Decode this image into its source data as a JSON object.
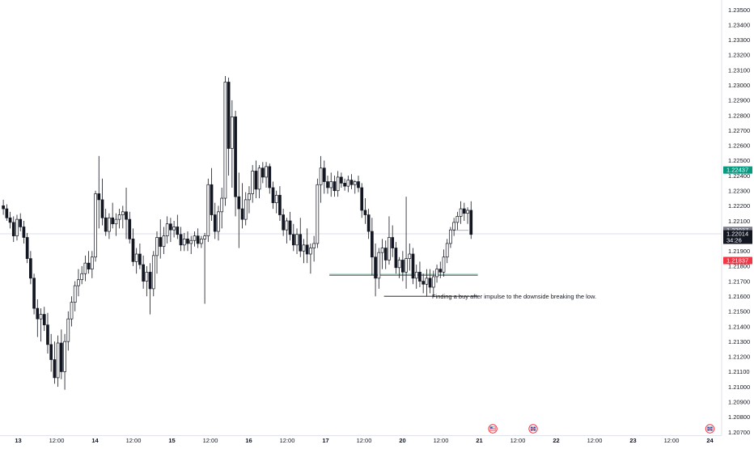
{
  "chart_data": {
    "type": "candlestick",
    "symbol": "",
    "price_axis": {
      "labels": [
        "1.23500",
        "1.23400",
        "1.23300",
        "1.23200",
        "1.23100",
        "1.23000",
        "1.22900",
        "1.22800",
        "1.22700",
        "1.22600",
        "1.22500",
        "1.22400",
        "1.22300",
        "1.22200",
        "1.22100",
        "1.22000",
        "1.21900",
        "1.21800",
        "1.21700",
        "1.21600",
        "1.21500",
        "1.21400",
        "1.21300",
        "1.21200",
        "1.21100",
        "1.21000",
        "1.20900",
        "1.20800",
        "1.20700"
      ],
      "ylim": [
        1.207,
        1.2355
      ]
    },
    "time_axis": {
      "labels": [
        "13",
        "12:00",
        "14",
        "12:00",
        "15",
        "12:00",
        "16",
        "12:00",
        "17",
        "12:00",
        "20",
        "12:00",
        "21",
        "12:00",
        "22",
        "12:00",
        "23",
        "12:00",
        "24"
      ],
      "bold": [
        "13",
        "14",
        "15",
        "16",
        "17",
        "20",
        "21",
        "22",
        "23",
        "24"
      ]
    },
    "price_tags": [
      {
        "label": "1.22437",
        "value": 1.22437,
        "color": "#089981",
        "text_color": "#ffffff"
      },
      {
        "label": "1.22037",
        "value": 1.22037,
        "color": "#787b86",
        "text_color": "#ffffff"
      },
      {
        "label": "1.22014",
        "value": 1.22014,
        "color": "#131722",
        "text_color": "#ffffff",
        "countdown": "34:26"
      },
      {
        "label": "1.21837",
        "value": 1.21837,
        "color": "#f23645",
        "text_color": "#ffffff"
      }
    ],
    "current_price": 1.22014,
    "position": {
      "type": "long",
      "entry": 1.22037,
      "target": 1.22437,
      "stop": 1.21837,
      "profit_color": "#e6f4f1",
      "loss_color": "#fde4e7"
    },
    "levels": [
      {
        "price": 1.21745,
        "color": "#5aa68c",
        "from_bar": 96,
        "to_bar": 139
      },
      {
        "price": 1.216,
        "color": "#555555",
        "from_bar": 112,
        "to_bar": 139
      }
    ],
    "annotation": "Finding a buy after impulse to the downside breaking the low.",
    "event_markers": [
      {
        "type": "US-flag-icon",
        "at_index": 12.35
      },
      {
        "type": "UK-flag-icon",
        "at_index": 13.4
      },
      {
        "type": "UK-flag-icon",
        "at_index": 18.0
      }
    ],
    "candles": [
      [
        1.222,
        1.2224,
        1.2214,
        1.2218
      ],
      [
        1.2218,
        1.2221,
        1.221,
        1.2212
      ],
      [
        1.2212,
        1.2216,
        1.2205,
        1.2209
      ],
      [
        1.2209,
        1.2213,
        1.2196,
        1.22
      ],
      [
        1.22,
        1.2214,
        1.2197,
        1.2211
      ],
      [
        1.2211,
        1.2215,
        1.2203,
        1.2206
      ],
      [
        1.2206,
        1.221,
        1.2195,
        1.2199
      ],
      [
        1.2199,
        1.2202,
        1.2182,
        1.2185
      ],
      [
        1.2185,
        1.219,
        1.2168,
        1.2172
      ],
      [
        1.2172,
        1.2175,
        1.2148,
        1.2152
      ],
      [
        1.2152,
        1.2158,
        1.2133,
        1.2145
      ],
      [
        1.2145,
        1.2152,
        1.213,
        1.2148
      ],
      [
        1.2148,
        1.2153,
        1.2137,
        1.2141
      ],
      [
        1.2141,
        1.2149,
        1.2122,
        1.2128
      ],
      [
        1.2128,
        1.2135,
        1.211,
        1.2118
      ],
      [
        1.2118,
        1.213,
        1.2102,
        1.2106
      ],
      [
        1.2106,
        1.2134,
        1.21,
        1.2129
      ],
      [
        1.2129,
        1.2138,
        1.2105,
        1.211
      ],
      [
        1.211,
        1.2135,
        1.2098,
        1.213
      ],
      [
        1.213,
        1.215,
        1.2124,
        1.2145
      ],
      [
        1.2145,
        1.216,
        1.214,
        1.2156
      ],
      [
        1.2156,
        1.217,
        1.215,
        1.2167
      ],
      [
        1.2167,
        1.2178,
        1.216,
        1.2171
      ],
      [
        1.2171,
        1.218,
        1.2168,
        1.2175
      ],
      [
        1.2175,
        1.2187,
        1.217,
        1.2182
      ],
      [
        1.2182,
        1.219,
        1.2175,
        1.2178
      ],
      [
        1.2178,
        1.219,
        1.2172,
        1.2186
      ],
      [
        1.2186,
        1.223,
        1.2183,
        1.2228
      ],
      [
        1.2228,
        1.2253,
        1.2205,
        1.2224
      ],
      [
        1.2224,
        1.2238,
        1.2207,
        1.2212
      ],
      [
        1.2212,
        1.2218,
        1.22,
        1.2203
      ],
      [
        1.2203,
        1.2215,
        1.2198,
        1.2212
      ],
      [
        1.2212,
        1.2222,
        1.2205,
        1.2208
      ],
      [
        1.2208,
        1.2215,
        1.22,
        1.2211
      ],
      [
        1.2211,
        1.2218,
        1.2205,
        1.2214
      ],
      [
        1.2214,
        1.222,
        1.2205,
        1.2216
      ],
      [
        1.2216,
        1.2232,
        1.2198,
        1.2211
      ],
      [
        1.2211,
        1.2216,
        1.2195,
        1.2198
      ],
      [
        1.2198,
        1.2205,
        1.218,
        1.2183
      ],
      [
        1.2183,
        1.2192,
        1.2175,
        1.2188
      ],
      [
        1.2188,
        1.2195,
        1.2178,
        1.2181
      ],
      [
        1.2181,
        1.2187,
        1.2165,
        1.217
      ],
      [
        1.217,
        1.218,
        1.216,
        1.2176
      ],
      [
        1.2176,
        1.2182,
        1.2148,
        1.2165
      ],
      [
        1.2165,
        1.219,
        1.216,
        1.2187
      ],
      [
        1.2187,
        1.2203,
        1.2175,
        1.2199
      ],
      [
        1.2199,
        1.2211,
        1.2185,
        1.2193
      ],
      [
        1.2193,
        1.2206,
        1.2188,
        1.22
      ],
      [
        1.22,
        1.2213,
        1.2195,
        1.2208
      ],
      [
        1.2208,
        1.2212,
        1.2196,
        1.2204
      ],
      [
        1.2204,
        1.221,
        1.2199,
        1.2206
      ],
      [
        1.2206,
        1.2214,
        1.2198,
        1.2201
      ],
      [
        1.2201,
        1.2206,
        1.219,
        1.2194
      ],
      [
        1.2194,
        1.2202,
        1.219,
        1.2198
      ],
      [
        1.2198,
        1.2203,
        1.219,
        1.2195
      ],
      [
        1.2195,
        1.22,
        1.2188,
        1.2197
      ],
      [
        1.2197,
        1.2203,
        1.2193,
        1.22
      ],
      [
        1.22,
        1.2205,
        1.2192,
        1.2195
      ],
      [
        1.2195,
        1.22,
        1.2192,
        1.2198
      ],
      [
        1.2198,
        1.2202,
        1.2155,
        1.22
      ],
      [
        1.22,
        1.2238,
        1.2196,
        1.2234
      ],
      [
        1.2234,
        1.2245,
        1.221,
        1.2214
      ],
      [
        1.2214,
        1.2222,
        1.2198,
        1.2203
      ],
      [
        1.2203,
        1.222,
        1.2197,
        1.2216
      ],
      [
        1.2216,
        1.2232,
        1.2205,
        1.2225
      ],
      [
        1.2225,
        1.2306,
        1.222,
        1.2302
      ],
      [
        1.2302,
        1.2305,
        1.224,
        1.2258
      ],
      [
        1.2258,
        1.229,
        1.2232,
        1.2279
      ],
      [
        1.2279,
        1.2283,
        1.2213,
        1.2226
      ],
      [
        1.2226,
        1.2242,
        1.2192,
        1.2218
      ],
      [
        1.2218,
        1.2235,
        1.2205,
        1.2211
      ],
      [
        1.2211,
        1.2229,
        1.2207,
        1.2224
      ],
      [
        1.2224,
        1.2233,
        1.2215,
        1.2228
      ],
      [
        1.2228,
        1.2247,
        1.2222,
        1.2243
      ],
      [
        1.2243,
        1.225,
        1.2225,
        1.2231
      ],
      [
        1.2231,
        1.2247,
        1.2225,
        1.2245
      ],
      [
        1.2245,
        1.2249,
        1.2235,
        1.2239
      ],
      [
        1.2239,
        1.2249,
        1.2232,
        1.2246
      ],
      [
        1.2246,
        1.2248,
        1.2228,
        1.2232
      ],
      [
        1.2232,
        1.2236,
        1.2218,
        1.2222
      ],
      [
        1.2222,
        1.223,
        1.2215,
        1.2227
      ],
      [
        1.2227,
        1.2233,
        1.221,
        1.2214
      ],
      [
        1.2214,
        1.2218,
        1.22,
        1.2204
      ],
      [
        1.2204,
        1.2212,
        1.2195,
        1.221
      ],
      [
        1.221,
        1.2216,
        1.2197,
        1.2201
      ],
      [
        1.2201,
        1.2208,
        1.219,
        1.2194
      ],
      [
        1.2194,
        1.2205,
        1.2188,
        1.2201
      ],
      [
        1.2201,
        1.2212,
        1.2186,
        1.219
      ],
      [
        1.219,
        1.2198,
        1.2182,
        1.2194
      ],
      [
        1.2194,
        1.2205,
        1.2182,
        1.2188
      ],
      [
        1.2188,
        1.2195,
        1.2175,
        1.2192
      ],
      [
        1.2192,
        1.22,
        1.2183,
        1.2195
      ],
      [
        1.2195,
        1.2238,
        1.2192,
        1.2234
      ],
      [
        1.2234,
        1.2253,
        1.2222,
        1.2245
      ],
      [
        1.2245,
        1.225,
        1.2228,
        1.2236
      ],
      [
        1.2236,
        1.224,
        1.2228,
        1.2232
      ],
      [
        1.2232,
        1.2242,
        1.2226,
        1.2236
      ],
      [
        1.2236,
        1.224,
        1.2226,
        1.223
      ],
      [
        1.223,
        1.2243,
        1.2226,
        1.2239
      ],
      [
        1.2239,
        1.2242,
        1.2232,
        1.2235
      ],
      [
        1.2235,
        1.2238,
        1.223,
        1.2233
      ],
      [
        1.2233,
        1.224,
        1.2229,
        1.2237
      ],
      [
        1.2237,
        1.2241,
        1.2231,
        1.2234
      ],
      [
        1.2234,
        1.2237,
        1.2228,
        1.2236
      ],
      [
        1.2236,
        1.224,
        1.2229,
        1.2232
      ],
      [
        1.2232,
        1.2235,
        1.2212,
        1.2217
      ],
      [
        1.2217,
        1.2225,
        1.2208,
        1.2214
      ],
      [
        1.2214,
        1.2218,
        1.2198,
        1.2203
      ],
      [
        1.2203,
        1.2212,
        1.2174,
        1.2186
      ],
      [
        1.2186,
        1.2195,
        1.216,
        1.2172
      ],
      [
        1.2172,
        1.2192,
        1.2165,
        1.2189
      ],
      [
        1.2189,
        1.2198,
        1.2178,
        1.2192
      ],
      [
        1.2192,
        1.2197,
        1.2178,
        1.2184
      ],
      [
        1.2184,
        1.2213,
        1.2181,
        1.2199
      ],
      [
        1.2199,
        1.2207,
        1.2186,
        1.2192
      ],
      [
        1.2192,
        1.2196,
        1.2175,
        1.2179
      ],
      [
        1.2179,
        1.2186,
        1.2172,
        1.2184
      ],
      [
        1.2184,
        1.219,
        1.217,
        1.2176
      ],
      [
        1.2176,
        1.2226,
        1.2165,
        1.2185
      ],
      [
        1.2185,
        1.2195,
        1.2177,
        1.2188
      ],
      [
        1.2188,
        1.2192,
        1.2168,
        1.2172
      ],
      [
        1.2172,
        1.2181,
        1.2165,
        1.2176
      ],
      [
        1.2176,
        1.2183,
        1.2166,
        1.217
      ],
      [
        1.217,
        1.2175,
        1.2162,
        1.2168
      ],
      [
        1.2168,
        1.2178,
        1.216,
        1.2172
      ],
      [
        1.2172,
        1.2178,
        1.2162,
        1.2166
      ],
      [
        1.2166,
        1.2177,
        1.216,
        1.2173
      ],
      [
        1.2173,
        1.2181,
        1.2169,
        1.2178
      ],
      [
        1.2178,
        1.2183,
        1.2172,
        1.2176
      ],
      [
        1.2176,
        1.2191,
        1.2173,
        1.2186
      ],
      [
        1.2186,
        1.2198,
        1.2182,
        1.2195
      ],
      [
        1.2195,
        1.2206,
        1.2192,
        1.2204
      ],
      [
        1.2204,
        1.2212,
        1.22,
        1.2209
      ],
      [
        1.2209,
        1.2216,
        1.2204,
        1.2213
      ],
      [
        1.2213,
        1.2223,
        1.2208,
        1.2218
      ],
      [
        1.2218,
        1.2222,
        1.221,
        1.2215
      ],
      [
        1.2215,
        1.2219,
        1.2208,
        1.2217
      ],
      [
        1.2217,
        1.2223,
        1.2198,
        1.2201
      ]
    ]
  }
}
